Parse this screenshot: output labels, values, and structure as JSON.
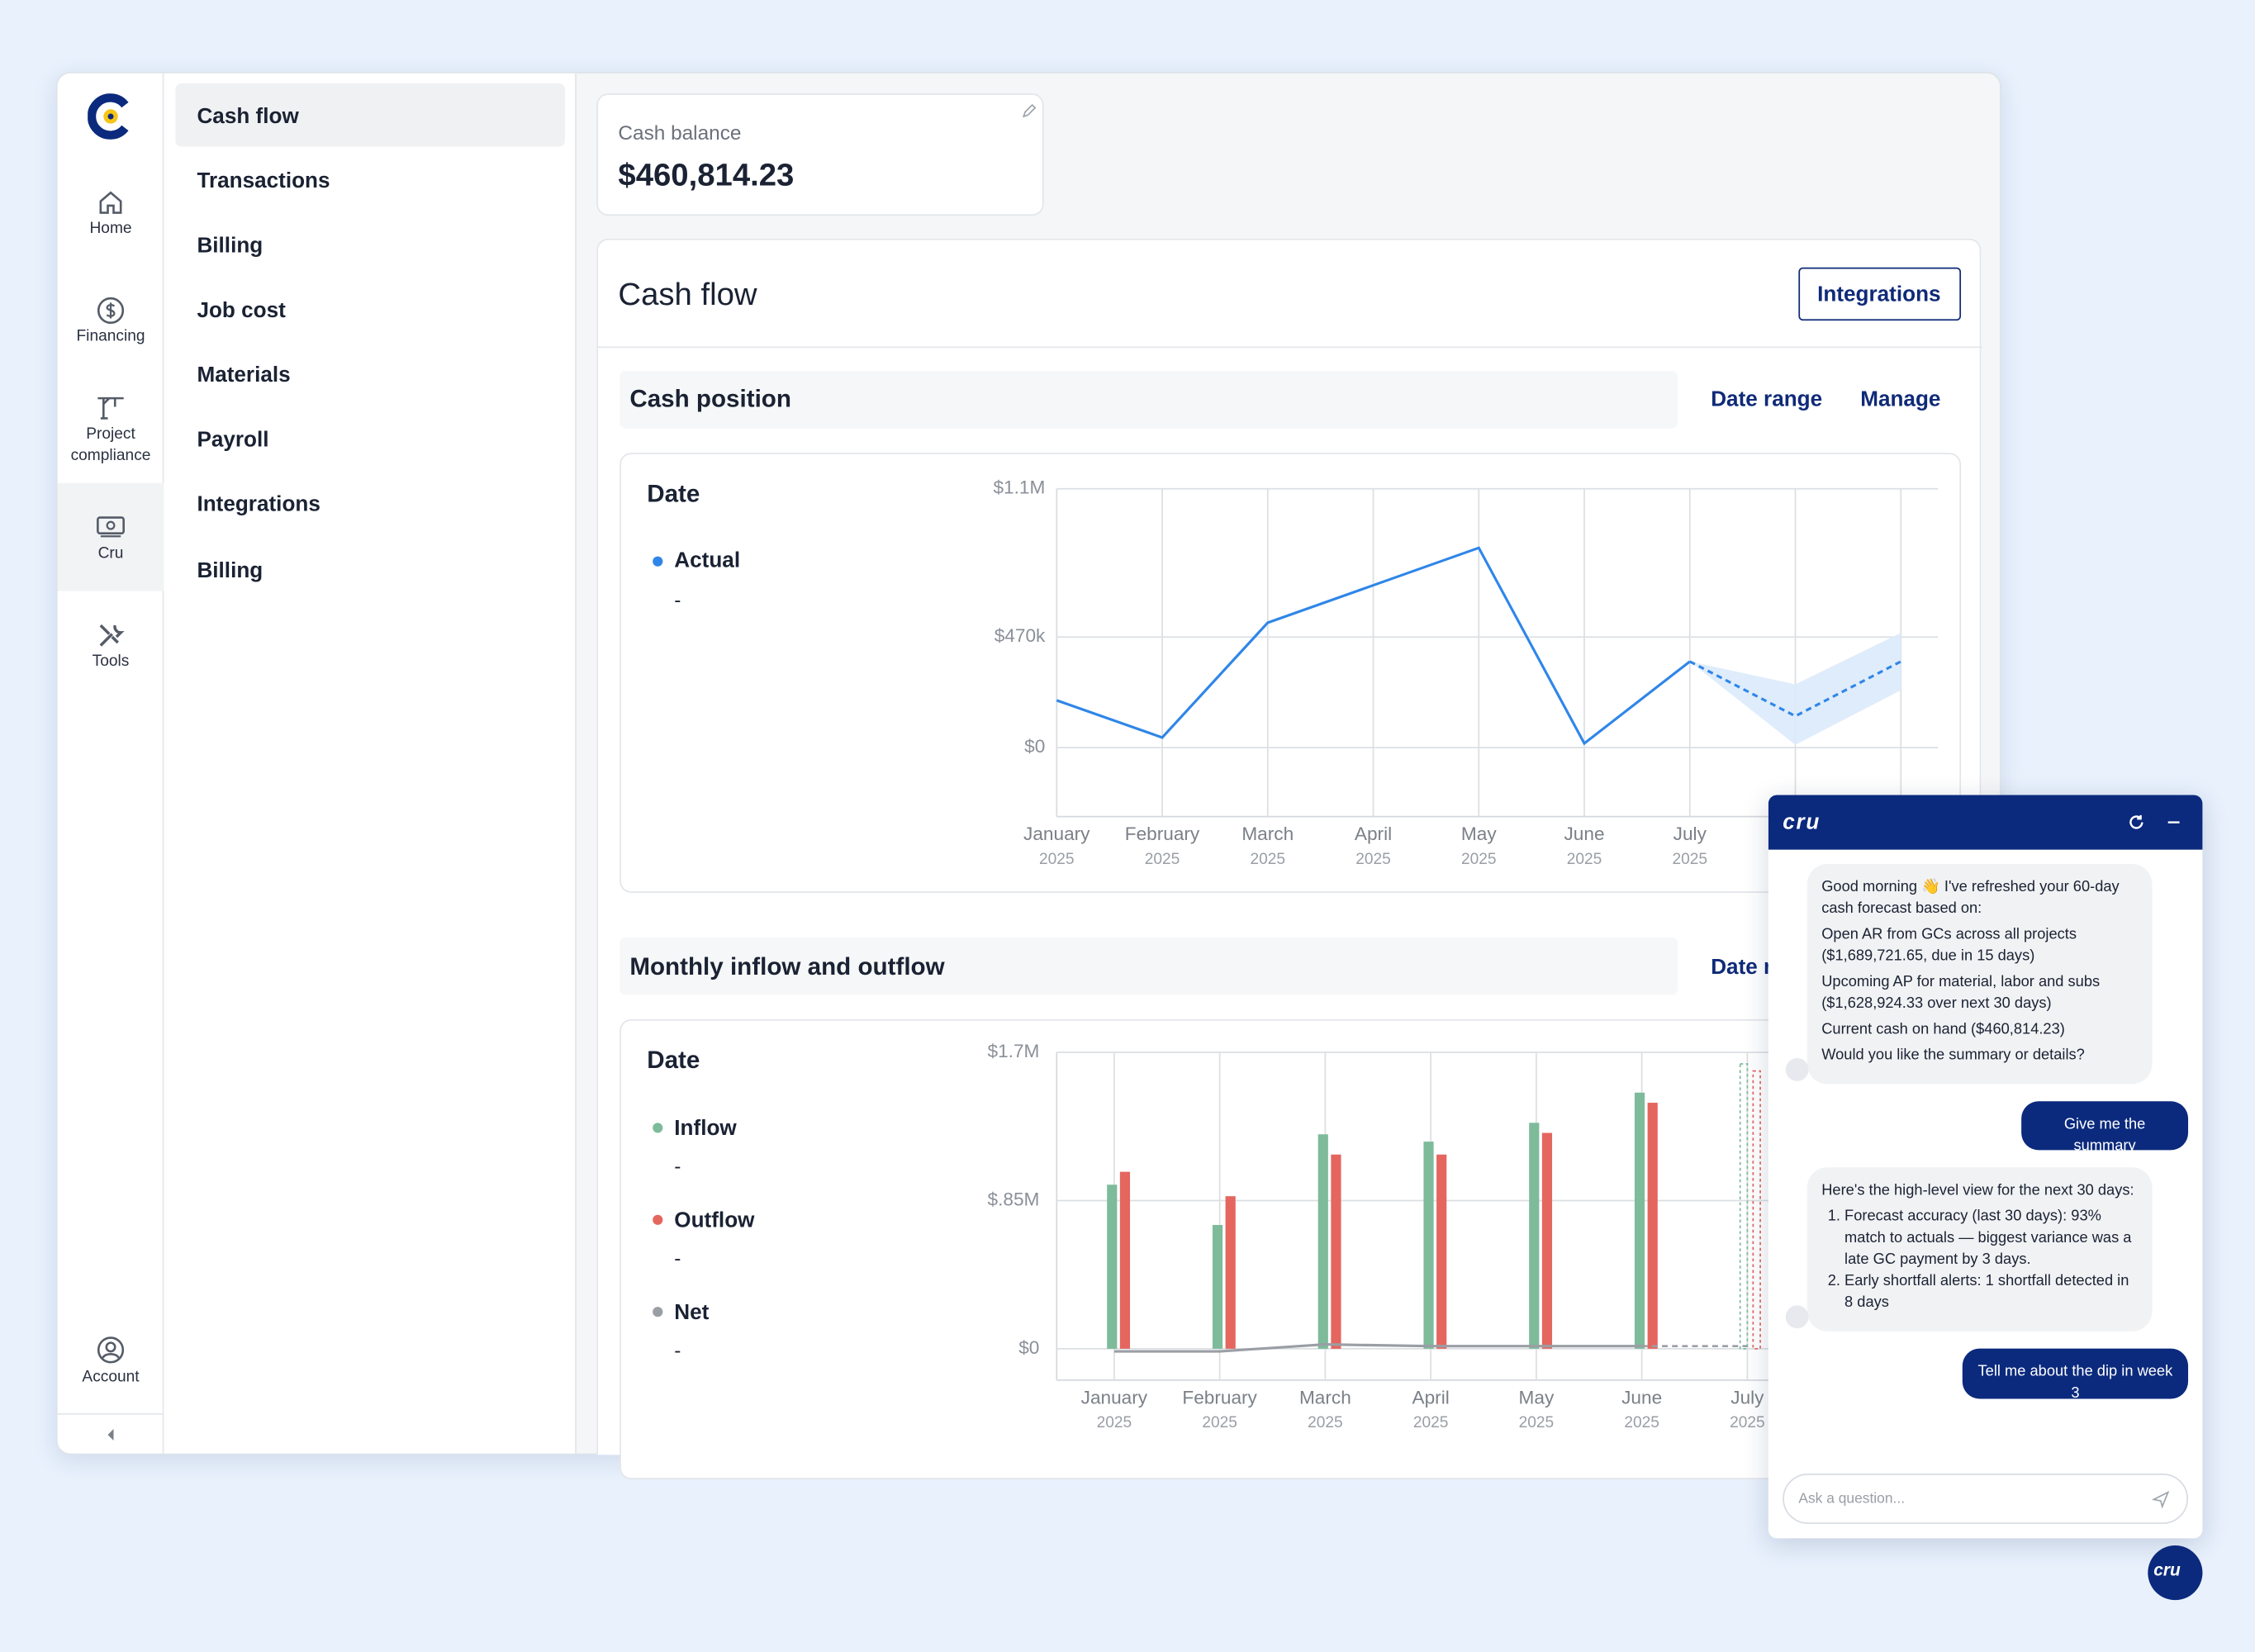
{
  "sidebar": {
    "items": [
      "Home",
      "Financing",
      "Project compliance",
      "Cru",
      "Tools"
    ],
    "account": "Account"
  },
  "nav": {
    "items": [
      "Cash flow",
      "Transactions",
      "Billing",
      "Job cost",
      "Materials",
      "Payroll",
      "Integrations",
      "Billing"
    ]
  },
  "cash_balance": {
    "label": "Cash balance",
    "amount": "$460,814.23"
  },
  "panel": {
    "title": "Cash flow",
    "button": "Integrations"
  },
  "cash_position": {
    "title": "Cash position",
    "links": [
      "Date range",
      "Manage"
    ]
  },
  "monthly": {
    "title": "Monthly inflow and outflow",
    "link": "Date range"
  },
  "chart_data": [
    {
      "type": "line",
      "legend_title": "Date",
      "categories": [
        "January",
        "February",
        "March",
        "April",
        "May",
        "June",
        "July",
        null,
        null
      ],
      "category_years": [
        "2025",
        "2025",
        "2025",
        "2025",
        "2025",
        "2025",
        "2025",
        null,
        null
      ],
      "series": [
        {
          "name": "Actual",
          "color": "#2f86e8",
          "legend_value": "-",
          "values": [
            201000,
            43000,
            531000,
            690000,
            849000,
            18000,
            366000,
            null,
            null
          ]
        },
        {
          "color": "#2f86e8",
          "dashed": true,
          "values": [
            null,
            null,
            null,
            null,
            null,
            null,
            366000,
            134000,
            366000
          ]
        }
      ],
      "forecast_range": {
        "color": "#dceafb",
        "lower": [
          null,
          null,
          null,
          null,
          null,
          null,
          366000,
          12000,
          244000
        ],
        "upper": [
          null,
          null,
          null,
          null,
          null,
          null,
          366000,
          269000,
          488000
        ]
      },
      "ylim": [
        -293000,
        1100000
      ],
      "yticks": [
        {
          "value": 0,
          "label": "$0"
        },
        {
          "value": 470000,
          "label": "$470k"
        },
        {
          "value": 1100000,
          "label": "$1.1M"
        }
      ],
      "grid": true
    },
    {
      "type": "bar",
      "legend_title": "Date",
      "categories": [
        "January",
        "February",
        "March",
        "April",
        "May",
        "June",
        "July"
      ],
      "category_years": [
        "2025",
        "2025",
        "2025",
        "2025",
        "2025",
        "2025",
        "2025"
      ],
      "forecast_start": "July",
      "series": [
        {
          "name": "Inflow",
          "color": "#7dbb9b",
          "legend_value": "-",
          "values": [
            941000,
            710000,
            1230000,
            1188000,
            1296000,
            1469000,
            1634000
          ]
        },
        {
          "name": "Outflow",
          "color": "#e4665f",
          "legend_value": "-",
          "values": [
            1015000,
            875000,
            1114000,
            1114000,
            1238000,
            1411000,
            1593000
          ]
        },
        {
          "name": "Net",
          "type": "line",
          "color": "#9a9ea5",
          "legend_value": "-",
          "values": [
            -15000,
            -15000,
            25000,
            15000,
            15000,
            15000,
            15000
          ]
        }
      ],
      "ylim": [
        -180000,
        1700000
      ],
      "yticks": [
        {
          "value": 0,
          "label": "$0"
        },
        {
          "value": 850000,
          "label": "$.85M"
        },
        {
          "value": 1700000,
          "label": "$1.7M"
        }
      ],
      "grid": true
    }
  ],
  "chat": {
    "brand": "cru",
    "messages": [
      {
        "role": "bot",
        "lines": [
          "Good morning 👋 I've refreshed your 60-day cash forecast based on:",
          "Open AR from GCs across all projects ($1,689,721.65, due in 15 days)",
          "Upcoming AP for material, labor and subs ($1,628,924.33 over next 30 days)",
          "Current cash on hand ($460,814.23)",
          "Would you like the summary or details?"
        ]
      },
      {
        "role": "user",
        "lines": [
          "Give me the summary"
        ]
      },
      {
        "role": "bot",
        "lines": [
          "Here's the high-level view for the next 30 days:"
        ],
        "list": [
          "Forecast accuracy (last 30 days): 93% match to actuals — biggest variance was a late GC payment by 3 days.",
          "Early shortfall alerts: 1 shortfall detected in 8 days"
        ]
      },
      {
        "role": "user",
        "lines": [
          "Tell me about the dip in week 3"
        ]
      }
    ],
    "placeholder": "Ask a question..."
  }
}
